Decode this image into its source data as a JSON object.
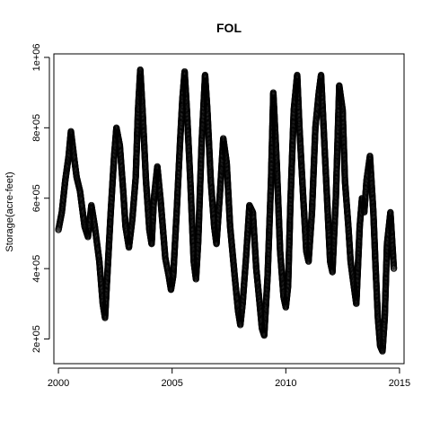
{
  "chart_data": {
    "type": "scatter",
    "title": "FOL",
    "xlabel": "",
    "ylabel": "Storage(acre-feet)",
    "xlim": [
      1999.8,
      2015.2
    ],
    "ylim": [
      130000,
      1010000
    ],
    "x_ticks": [
      2000,
      2005,
      2010,
      2015
    ],
    "x_tick_labels": [
      "2000",
      "2005",
      "2010",
      "2015"
    ],
    "y_ticks": [
      200000,
      400000,
      600000,
      800000,
      1000000
    ],
    "y_tick_labels": [
      "2e+05",
      "4e+05",
      "6e+05",
      "8e+05",
      "1e+06"
    ],
    "grid": false,
    "marker": "open-circle",
    "series": [
      {
        "x": [
          2000.0,
          2000.15,
          2000.3,
          2000.45,
          2000.55,
          2000.7,
          2000.8,
          2000.95,
          2001.05,
          2001.15,
          2001.3,
          2001.45,
          2001.6,
          2001.8,
          2001.95,
          2002.05,
          2002.15,
          2002.3,
          2002.45,
          2002.55,
          2002.7,
          2002.85,
          2002.95,
          2003.1,
          2003.25,
          2003.4,
          2003.5,
          2003.6,
          2003.7,
          2003.85,
          2004.0,
          2004.1,
          2004.2,
          2004.35,
          2004.5,
          2004.7,
          2004.85,
          2004.95,
          2005.05,
          2005.2,
          2005.35,
          2005.45,
          2005.55,
          2005.65,
          2005.8,
          2005.95,
          2006.05,
          2006.15,
          2006.3,
          2006.45,
          2006.55,
          2006.7,
          2006.85,
          2006.95,
          2007.1,
          2007.25,
          2007.4,
          2007.55,
          2007.75,
          2007.9,
          2008.0,
          2008.1,
          2008.25,
          2008.4,
          2008.55,
          2008.7,
          2008.85,
          2008.95,
          2009.05,
          2009.2,
          2009.35,
          2009.45,
          2009.6,
          2009.75,
          2009.9,
          2010.0,
          2010.1,
          2010.2,
          2010.35,
          2010.5,
          2010.6,
          2010.75,
          2010.9,
          2011.0,
          2011.15,
          2011.3,
          2011.45,
          2011.55,
          2011.7,
          2011.85,
          2011.95,
          2012.05,
          2012.2,
          2012.35,
          2012.5,
          2012.6,
          2012.75,
          2012.85,
          2012.95,
          2013.1,
          2013.25,
          2013.35,
          2013.45,
          2013.55,
          2013.7,
          2013.85,
          2013.95,
          2014.05,
          2014.15,
          2014.25,
          2014.35,
          2014.45,
          2014.6,
          2014.75
        ],
        "y": [
          510000,
          560000,
          650000,
          720000,
          790000,
          710000,
          660000,
          620000,
          570000,
          520000,
          490000,
          580000,
          520000,
          420000,
          300000,
          260000,
          380000,
          560000,
          720000,
          800000,
          750000,
          620000,
          520000,
          460000,
          540000,
          660000,
          850000,
          965000,
          850000,
          650000,
          510000,
          470000,
          600000,
          690000,
          590000,
          430000,
          380000,
          340000,
          380000,
          560000,
          760000,
          880000,
          960000,
          850000,
          650000,
          420000,
          370000,
          480000,
          760000,
          950000,
          850000,
          650000,
          520000,
          470000,
          610000,
          770000,
          700000,
          520000,
          380000,
          280000,
          240000,
          300000,
          430000,
          580000,
          560000,
          400000,
          300000,
          230000,
          210000,
          380000,
          650000,
          900000,
          700000,
          450000,
          320000,
          290000,
          350000,
          580000,
          850000,
          950000,
          800000,
          620000,
          450000,
          420000,
          560000,
          800000,
          900000,
          950000,
          750000,
          550000,
          420000,
          390000,
          600000,
          920000,
          850000,
          650000,
          520000,
          420000,
          370000,
          300000,
          520000,
          600000,
          560000,
          650000,
          720000,
          560000,
          400000,
          260000,
          180000,
          165000,
          260000,
          470000,
          560000,
          400000
        ]
      }
    ]
  }
}
